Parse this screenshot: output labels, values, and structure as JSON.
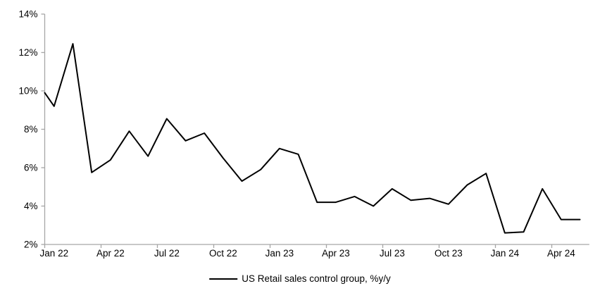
{
  "chart_data": {
    "type": "line",
    "title": "",
    "legend_label": "US Retail sales control group, %y/y",
    "legend_position": "bottom-center",
    "grid": false,
    "x": [
      "Jan 22",
      "Feb 22",
      "Mar 22",
      "Apr 22",
      "May 22",
      "Jun 22",
      "Jul 22",
      "Aug 22",
      "Sep 22",
      "Oct 22",
      "Nov 22",
      "Dec 22",
      "Jan 23",
      "Feb 23",
      "Mar 23",
      "Apr 23",
      "May 23",
      "Jun 23",
      "Jul 23",
      "Aug 23",
      "Sep 23",
      "Oct 23",
      "Nov 23",
      "Dec 23",
      "Jan 24",
      "Feb 24",
      "Mar 24",
      "Apr 24",
      "May 24"
    ],
    "values": [
      9.2,
      12.45,
      5.75,
      6.4,
      7.9,
      6.6,
      8.55,
      7.4,
      7.8,
      6.5,
      5.3,
      5.9,
      7.0,
      6.7,
      4.2,
      4.2,
      4.5,
      4.0,
      4.9,
      4.3,
      4.4,
      4.1,
      5.1,
      5.7,
      2.6,
      2.65,
      4.9,
      3.3,
      3.3
    ],
    "left_edge_entry_value": 9.9,
    "x_tick_every_months": 3,
    "x_tick_labels": [
      "Jan 22",
      "Apr 22",
      "Jul 22",
      "Oct 22",
      "Jan 23",
      "Apr 23",
      "Jul 23",
      "Oct 23",
      "Jan 24",
      "Apr 24"
    ],
    "y_ticks": [
      "2%",
      "4%",
      "6%",
      "8%",
      "10%",
      "12%",
      "14%"
    ],
    "ylim": [
      2,
      14
    ],
    "y_tick_step": 2,
    "colors": {
      "line": "#000000",
      "axis": "#a6a6a6",
      "text": "#000000",
      "background": "#ffffff"
    }
  }
}
